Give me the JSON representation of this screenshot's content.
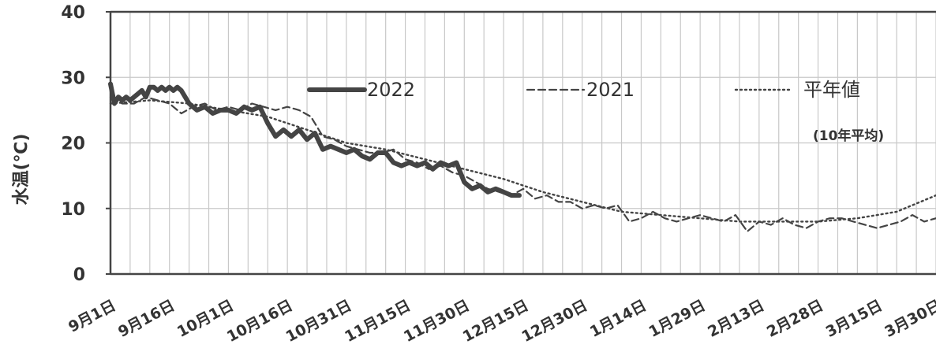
{
  "chart_data": {
    "type": "line",
    "title": "",
    "xlabel": "",
    "ylabel": "水温(℃)",
    "ylim": [
      0,
      40
    ],
    "y_ticks": [
      "0",
      "10",
      "20",
      "30",
      "40"
    ],
    "x_range": [
      "9月1日",
      "3月30日"
    ],
    "x_ticks": [
      "9月1日",
      "9月16日",
      "10月1日",
      "10月16日",
      "10月31日",
      "11月15日",
      "11月30日",
      "12月15日",
      "12月30日",
      "1月14日",
      "1月29日",
      "2月13日",
      "2月28日",
      "3月15日",
      "3月30日"
    ],
    "grid": true,
    "legend_position": "top",
    "series": [
      {
        "name": "2022",
        "style": "solid-thick",
        "color": "#444444",
        "x": [
          0,
          1,
          2,
          3,
          4,
          5,
          6,
          7,
          8,
          9,
          10,
          11,
          12,
          13,
          14,
          15,
          16,
          17,
          18,
          20,
          22,
          24,
          26,
          28,
          30,
          32,
          34,
          36,
          38,
          40,
          42,
          44,
          46,
          48,
          50,
          52,
          54,
          56,
          58,
          60,
          62,
          64,
          66,
          68,
          70,
          72,
          74,
          76,
          78,
          80,
          82,
          84,
          86,
          88,
          90,
          92,
          94,
          96,
          98,
          100,
          102,
          104
        ],
        "y": [
          29,
          26,
          27,
          26.5,
          27,
          26.5,
          27,
          27.5,
          28,
          27,
          28.5,
          28.5,
          28,
          28.5,
          28,
          28.5,
          28,
          28.5,
          28,
          26,
          25,
          25.5,
          24.5,
          25,
          25,
          24.5,
          25.5,
          25,
          25.5,
          23,
          21,
          22,
          21,
          22,
          20.5,
          21.5,
          19,
          19.5,
          19,
          18.5,
          19,
          18,
          17.5,
          18.5,
          18.5,
          17,
          16.5,
          17,
          16.5,
          17,
          16,
          17,
          16.5,
          17,
          14,
          13,
          13.5,
          12.5,
          13,
          12.5,
          12,
          12
        ]
      },
      {
        "name": "2021",
        "style": "dashed",
        "color": "#444444",
        "x": [
          0,
          3,
          6,
          9,
          12,
          15,
          18,
          21,
          24,
          27,
          30,
          33,
          36,
          39,
          42,
          45,
          48,
          51,
          54,
          57,
          60,
          63,
          66,
          69,
          72,
          75,
          78,
          81,
          84,
          87,
          90,
          93,
          96,
          99,
          102,
          105,
          108,
          111,
          114,
          117,
          120,
          123,
          126,
          129,
          132,
          135,
          138,
          141,
          144,
          147,
          150,
          153,
          156,
          159,
          162,
          165,
          168,
          171,
          174,
          177,
          180,
          183,
          186,
          189,
          192,
          195,
          198,
          201,
          204,
          207,
          210
        ],
        "y": [
          27,
          26,
          26,
          27,
          26.5,
          26,
          24.5,
          25.5,
          26,
          25,
          25.5,
          25,
          26,
          25.5,
          25,
          25.5,
          25,
          24,
          21,
          20.5,
          19.5,
          19,
          18.5,
          18.5,
          19,
          17.5,
          17,
          16,
          16.5,
          15.5,
          15,
          14,
          13,
          12.5,
          12,
          13,
          11.5,
          12,
          11,
          11,
          10,
          10.5,
          10,
          10.5,
          8,
          8.5,
          9.5,
          8.5,
          8,
          8.5,
          9,
          8.5,
          8,
          9,
          6.5,
          8,
          7.5,
          8.5,
          7.5,
          7,
          8,
          8.5,
          8.5,
          8,
          7.5,
          7,
          7.5,
          8,
          9,
          8,
          8.5
        ]
      },
      {
        "name": "平年値",
        "sublabel": "(10年平均)",
        "style": "dotted",
        "color": "#444444",
        "x": [
          0,
          10,
          20,
          30,
          40,
          50,
          60,
          70,
          80,
          90,
          100,
          110,
          120,
          130,
          140,
          150,
          160,
          170,
          180,
          190,
          200,
          210
        ],
        "y": [
          26,
          26.5,
          26,
          25,
          24,
          22,
          20,
          19,
          17.5,
          16,
          14.5,
          12.5,
          11,
          9.5,
          9,
          8.5,
          8,
          8,
          8,
          8.5,
          9.5,
          12
        ]
      }
    ]
  }
}
